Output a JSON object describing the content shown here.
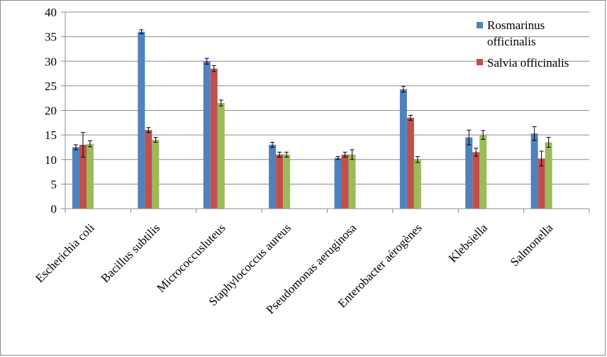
{
  "chart_data": {
    "type": "bar",
    "categories": [
      "Escherichia coli",
      "Bacillus subtilis",
      "Micrococcusluteus",
      "Staphylococcus aureus",
      "Pseudomonas aeruginosa",
      "Enterobacter aérogènes",
      "Klebsiella",
      "Salmonella"
    ],
    "series": [
      {
        "name": "Rosmarinus officinalis",
        "color": "#4f81bd",
        "values": [
          12.5,
          36,
          30,
          13,
          10.3,
          24.3,
          14.5,
          15.3
        ],
        "errors": [
          0.5,
          0.4,
          0.6,
          0.5,
          0.3,
          0.6,
          1.5,
          1.4
        ]
      },
      {
        "name": "Salvia officinalis",
        "color": "#c0504d",
        "values": [
          13,
          16,
          28.5,
          11,
          11,
          18.5,
          11.5,
          10.2
        ],
        "errors": [
          2.5,
          0.5,
          0.6,
          0.5,
          0.5,
          0.5,
          0.8,
          1.5
        ]
      },
      {
        "name": "",
        "color": "#9bbb59",
        "values": [
          13.2,
          14,
          21.5,
          11,
          11,
          10,
          15,
          13.5
        ],
        "errors": [
          0.6,
          0.5,
          0.6,
          0.5,
          1,
          0.6,
          0.9,
          1
        ]
      }
    ],
    "ylim": [
      0,
      40
    ],
    "yticks": [
      0,
      5,
      10,
      15,
      20,
      25,
      30,
      35,
      40
    ],
    "title": "",
    "xlabel": "",
    "ylabel": "",
    "legend_position": "top-right",
    "legend_labels": {
      "s1_line1": "Rosmarinus",
      "s1_line2": "officinalis",
      "s2": "Salvia officinalis"
    }
  }
}
